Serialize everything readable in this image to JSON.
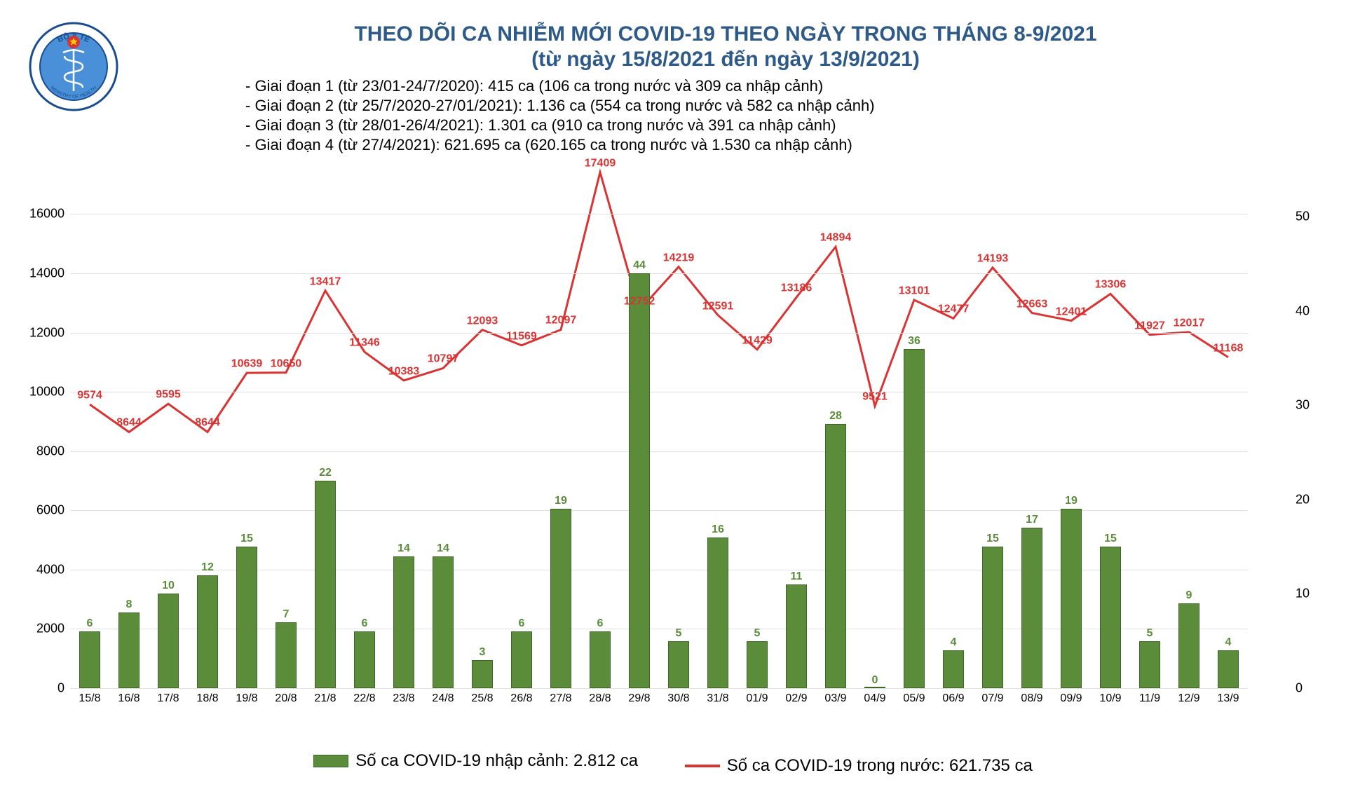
{
  "title_line1": "THEO DÕI CA NHIỄM MỚI COVID-19 THEO NGÀY TRONG THÁNG 8-9/2021",
  "title_line2": "(từ ngày 15/8/2021 đến ngày 13/9/2021)",
  "title_color": "#2e5a8a",
  "phases": [
    "- Giai đoạn 1 (từ 23/01-24/7/2020): 415 ca (106 ca trong nước và 309 ca nhập cảnh)",
    "- Giai đoạn 2 (từ 25/7/2020-27/01/2021): 1.136 ca (554 ca trong nước và 582 ca nhập cảnh)",
    "- Giai đoạn 3 (từ 28/01-26/4/2021): 1.301 ca (910 ca trong nước và 391 ca nhập cảnh)",
    "- Giai đoạn 4 (từ 27/4/2021): 621.695 ca (620.165 ca trong nước và 1.530 ca nhập cảnh)"
  ],
  "logo": {
    "outer_text_top": "BỘ Y TẾ",
    "outer_text_bottom": "MINISTRY OF HEALTH",
    "ring_color": "#1a4d8f",
    "star_color": "#ffcc00",
    "star_bg": "#d93333",
    "inner_bg": "#4a90d9"
  },
  "chart": {
    "type": "bar+line",
    "background_color": "#ffffff",
    "grid_color": "#e0e0e0",
    "bar_color": "#5a8c3a",
    "bar_border_color": "#3d6626",
    "line_color": "#d93333",
    "line_width": 3,
    "bar_width_ratio": 0.55,
    "left_axis": {
      "min": 0,
      "max": 17500,
      "ticks": [
        0,
        2000,
        4000,
        6000,
        8000,
        10000,
        12000,
        14000,
        16000
      ]
    },
    "right_axis": {
      "min": 0,
      "max": 55,
      "ticks": [
        0,
        10,
        20,
        30,
        40,
        50
      ]
    },
    "categories": [
      "15/8",
      "16/8",
      "17/8",
      "18/8",
      "19/8",
      "20/8",
      "21/8",
      "22/8",
      "23/8",
      "24/8",
      "25/8",
      "26/8",
      "27/8",
      "28/8",
      "29/8",
      "30/8",
      "31/8",
      "01/9",
      "02/9",
      "03/9",
      "04/9",
      "05/9",
      "06/9",
      "07/9",
      "08/9",
      "09/9",
      "10/9",
      "11/9",
      "12/9",
      "13/9"
    ],
    "bar_values": [
      6,
      8,
      10,
      12,
      15,
      7,
      22,
      6,
      14,
      14,
      3,
      6,
      19,
      6,
      44,
      5,
      16,
      5,
      11,
      28,
      0,
      36,
      4,
      15,
      17,
      19,
      15,
      5,
      9,
      4
    ],
    "line_values": [
      9574,
      8644,
      9595,
      8644,
      10639,
      10650,
      13417,
      11346,
      10383,
      10797,
      12093,
      11569,
      12097,
      17409,
      12752,
      14219,
      12591,
      11429,
      13186,
      14894,
      9521,
      13101,
      12477,
      14193,
      12663,
      12401,
      13306,
      11927,
      12017,
      11168
    ]
  },
  "legend": {
    "bar_label": "Số ca COVID-19 nhập cảnh: 2.812 ca",
    "line_label": "Số ca COVID-19 trong nước: 621.735 ca"
  }
}
